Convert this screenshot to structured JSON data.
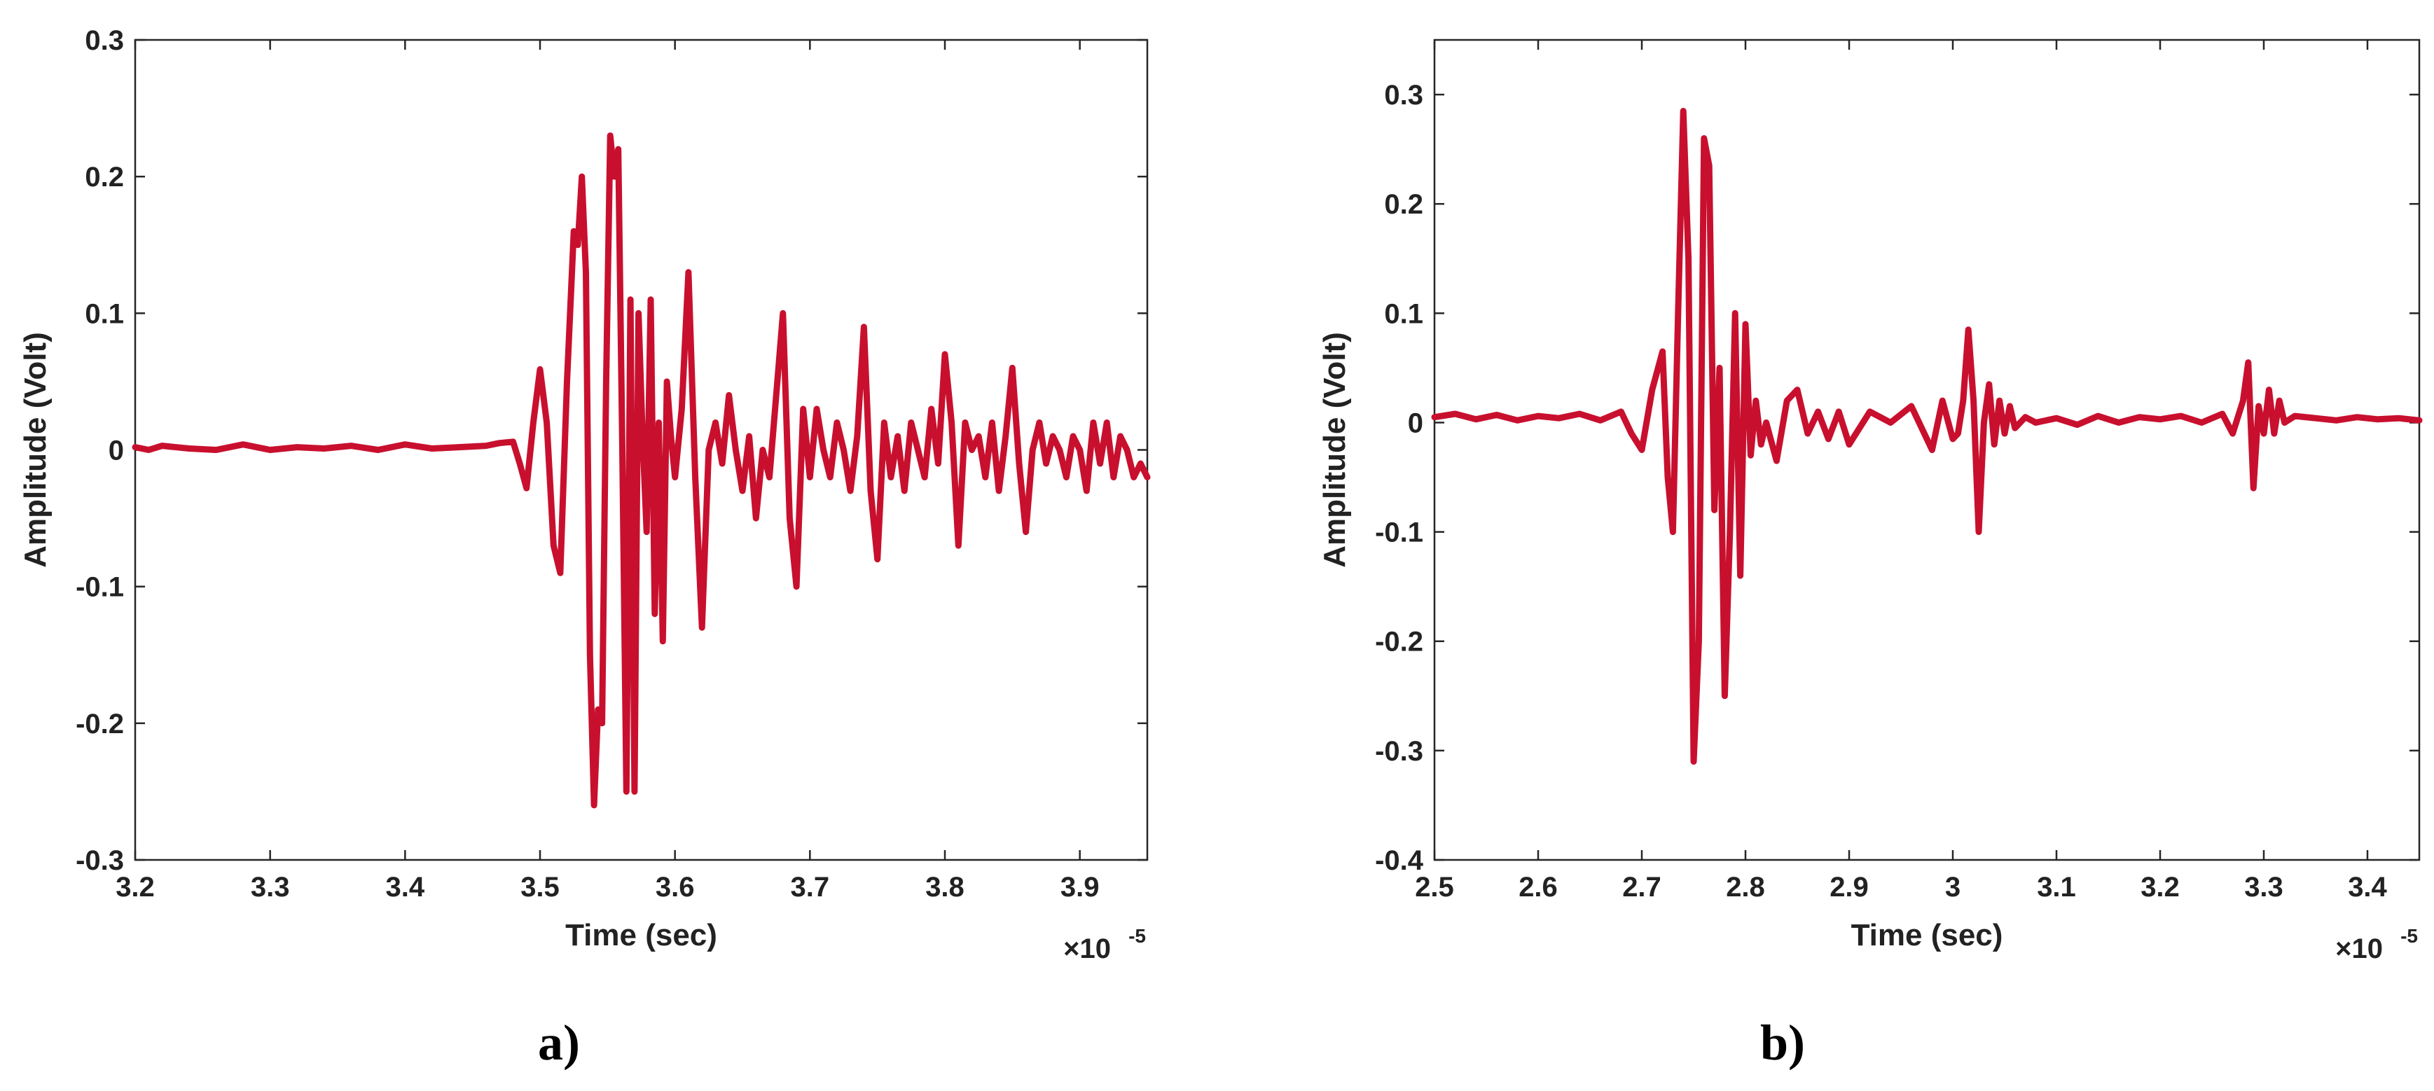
{
  "chart_data": [
    {
      "type": "line",
      "panel_label": "a)",
      "xlabel": "Time (sec)",
      "ylabel": "Amplitude (Volt)",
      "x_exponent_label": "×10",
      "x_exponent_power": "-5",
      "xlim": [
        3.2,
        3.95
      ],
      "ylim": [
        -0.3,
        0.3
      ],
      "x_ticks": [
        3.2,
        3.3,
        3.4,
        3.5,
        3.6,
        3.7,
        3.8,
        3.9
      ],
      "y_ticks": [
        -0.3,
        -0.2,
        -0.1,
        0,
        0.1,
        0.2,
        0.3
      ],
      "x_tick_labels": [
        "3.2",
        "3.3",
        "3.4",
        "3.5",
        "3.6",
        "3.7",
        "3.8",
        "3.9"
      ],
      "y_tick_labels": [
        "-0.3",
        "-0.2",
        "-0.1",
        "0",
        "0.1",
        "0.2",
        "0.3"
      ],
      "grid": false,
      "color": "#C8102E",
      "series": [
        {
          "x": [
            3.2,
            3.21,
            3.22,
            3.24,
            3.26,
            3.28,
            3.3,
            3.32,
            3.34,
            3.36,
            3.38,
            3.4,
            3.42,
            3.44,
            3.46,
            3.47,
            3.48,
            3.485,
            3.49,
            3.495,
            3.5,
            3.505,
            3.51,
            3.515,
            3.52,
            3.525,
            3.528,
            3.531,
            3.534,
            3.537,
            3.54,
            3.543,
            3.546,
            3.549,
            3.552,
            3.555,
            3.558,
            3.561,
            3.564,
            3.567,
            3.57,
            3.573,
            3.576,
            3.579,
            3.582,
            3.585,
            3.588,
            3.591,
            3.594,
            3.597,
            3.6,
            3.605,
            3.61,
            3.615,
            3.62,
            3.625,
            3.63,
            3.635,
            3.64,
            3.645,
            3.65,
            3.655,
            3.66,
            3.665,
            3.67,
            3.675,
            3.68,
            3.685,
            3.69,
            3.695,
            3.7,
            3.705,
            3.71,
            3.715,
            3.72,
            3.725,
            3.73,
            3.735,
            3.74,
            3.745,
            3.75,
            3.755,
            3.76,
            3.765,
            3.77,
            3.775,
            3.78,
            3.785,
            3.79,
            3.795,
            3.8,
            3.805,
            3.81,
            3.815,
            3.82,
            3.825,
            3.83,
            3.835,
            3.84,
            3.845,
            3.85,
            3.855,
            3.86,
            3.865,
            3.87,
            3.875,
            3.88,
            3.885,
            3.89,
            3.895,
            3.9,
            3.905,
            3.91,
            3.915,
            3.92,
            3.925,
            3.93,
            3.935,
            3.94,
            3.945,
            3.95
          ],
          "y": [
            0.002,
            0.0,
            0.003,
            0.001,
            0.0,
            0.004,
            0.0,
            0.002,
            0.001,
            0.003,
            0.0,
            0.004,
            0.001,
            0.002,
            0.003,
            0.005,
            0.006,
            -0.01,
            -0.028,
            0.02,
            0.059,
            0.02,
            -0.07,
            -0.09,
            0.05,
            0.16,
            0.15,
            0.2,
            0.13,
            -0.15,
            -0.26,
            -0.19,
            -0.2,
            0.05,
            0.23,
            0.2,
            0.22,
            0.0,
            -0.25,
            0.11,
            -0.25,
            0.1,
            0.01,
            -0.06,
            0.11,
            -0.12,
            0.02,
            -0.14,
            0.05,
            0.01,
            -0.02,
            0.03,
            0.13,
            -0.02,
            -0.13,
            0.0,
            0.02,
            -0.01,
            0.04,
            0.0,
            -0.03,
            0.01,
            -0.05,
            0.0,
            -0.02,
            0.04,
            0.1,
            -0.05,
            -0.1,
            0.03,
            -0.02,
            0.03,
            0.0,
            -0.02,
            0.02,
            0.0,
            -0.03,
            0.01,
            0.09,
            -0.03,
            -0.08,
            0.02,
            -0.02,
            0.01,
            -0.03,
            0.02,
            0.0,
            -0.02,
            0.03,
            -0.01,
            0.07,
            0.02,
            -0.07,
            0.02,
            0.0,
            0.01,
            -0.02,
            0.02,
            -0.03,
            0.01,
            0.06,
            -0.01,
            -0.06,
            0.0,
            0.02,
            -0.01,
            0.01,
            0.0,
            -0.02,
            0.01,
            0.0,
            -0.03,
            0.02,
            -0.01,
            0.02,
            -0.02,
            0.01,
            0.0,
            -0.02,
            -0.01,
            -0.02
          ]
        }
      ]
    },
    {
      "type": "line",
      "panel_label": "b)",
      "xlabel": "Time (sec)",
      "ylabel": "Amplitude (Volt)",
      "x_exponent_label": "×10",
      "x_exponent_power": "-5",
      "xlim": [
        2.5,
        3.45
      ],
      "ylim": [
        -0.4,
        0.35
      ],
      "x_ticks": [
        2.5,
        2.6,
        2.7,
        2.8,
        2.9,
        3.0,
        3.1,
        3.2,
        3.3,
        3.4
      ],
      "y_ticks": [
        -0.4,
        -0.3,
        -0.2,
        -0.1,
        0,
        0.1,
        0.2,
        0.3
      ],
      "x_tick_labels": [
        "2.5",
        "2.6",
        "2.7",
        "2.8",
        "2.9",
        "3",
        "3.1",
        "3.2",
        "3.3",
        "3.4"
      ],
      "y_tick_labels": [
        "-0.4",
        "-0.3",
        "-0.2",
        "-0.1",
        "0",
        "0.1",
        "0.2",
        "0.3"
      ],
      "grid": false,
      "color": "#C8102E",
      "series": [
        {
          "x": [
            2.5,
            2.52,
            2.54,
            2.56,
            2.58,
            2.6,
            2.62,
            2.64,
            2.66,
            2.68,
            2.69,
            2.7,
            2.71,
            2.72,
            2.725,
            2.73,
            2.735,
            2.74,
            2.745,
            2.75,
            2.755,
            2.76,
            2.765,
            2.77,
            2.775,
            2.78,
            2.785,
            2.79,
            2.795,
            2.8,
            2.805,
            2.81,
            2.815,
            2.82,
            2.83,
            2.84,
            2.85,
            2.86,
            2.87,
            2.88,
            2.89,
            2.9,
            2.92,
            2.94,
            2.96,
            2.98,
            2.99,
            3.0,
            3.005,
            3.01,
            3.015,
            3.02,
            3.025,
            3.03,
            3.035,
            3.04,
            3.045,
            3.05,
            3.055,
            3.06,
            3.07,
            3.08,
            3.1,
            3.12,
            3.14,
            3.16,
            3.18,
            3.2,
            3.22,
            3.24,
            3.26,
            3.27,
            3.28,
            3.285,
            3.29,
            3.295,
            3.3,
            3.305,
            3.31,
            3.315,
            3.32,
            3.33,
            3.35,
            3.37,
            3.39,
            3.41,
            3.43,
            3.45
          ],
          "y": [
            0.005,
            0.008,
            0.003,
            0.007,
            0.002,
            0.006,
            0.004,
            0.008,
            0.002,
            0.01,
            -0.01,
            -0.025,
            0.03,
            0.065,
            -0.05,
            -0.1,
            0.1,
            0.285,
            0.15,
            -0.31,
            -0.2,
            0.26,
            0.235,
            -0.08,
            0.05,
            -0.25,
            -0.1,
            0.1,
            -0.14,
            0.09,
            -0.03,
            0.02,
            -0.02,
            0.0,
            -0.035,
            0.02,
            0.03,
            -0.01,
            0.01,
            -0.015,
            0.01,
            -0.02,
            0.01,
            0.0,
            0.015,
            -0.025,
            0.02,
            -0.015,
            -0.01,
            0.02,
            0.085,
            0.02,
            -0.1,
            0.0,
            0.035,
            -0.02,
            0.02,
            -0.01,
            0.015,
            -0.005,
            0.005,
            0.0,
            0.004,
            -0.002,
            0.006,
            0.0,
            0.005,
            0.003,
            0.006,
            0.0,
            0.008,
            -0.01,
            0.02,
            0.055,
            -0.06,
            0.015,
            -0.01,
            0.03,
            -0.01,
            0.02,
            0.0,
            0.006,
            0.004,
            0.002,
            0.005,
            0.003,
            0.004,
            0.002
          ]
        }
      ]
    }
  ]
}
